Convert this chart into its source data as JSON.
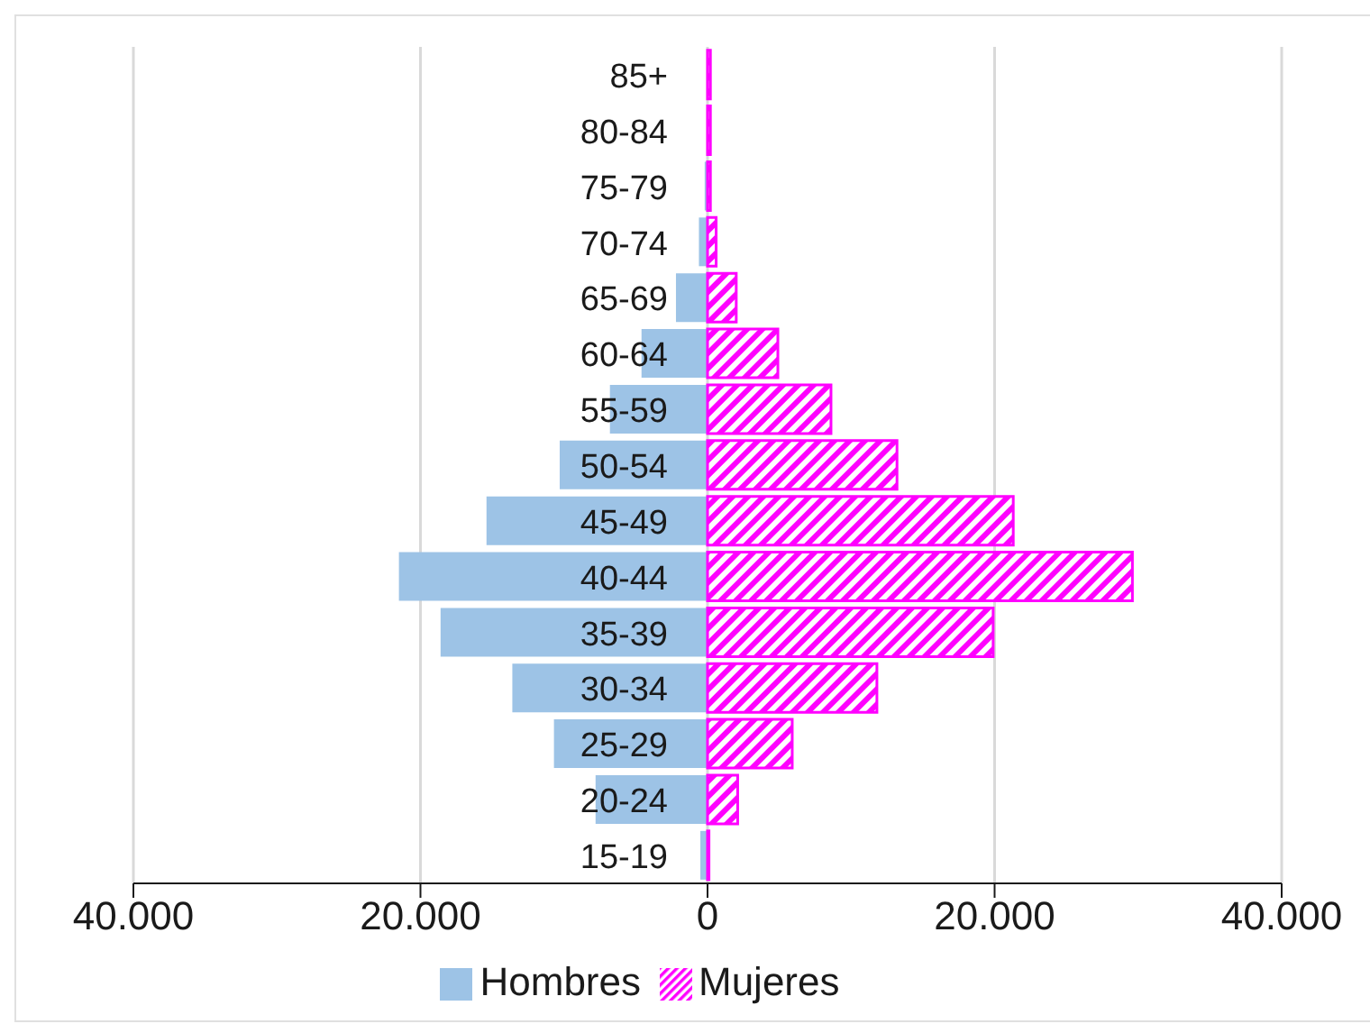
{
  "chart_data": {
    "type": "bar",
    "orientation": "horizontal",
    "categories": [
      "85+",
      "80-84",
      "75-79",
      "70-74",
      "65-69",
      "60-64",
      "55-59",
      "50-54",
      "45-49",
      "40-44",
      "35-39",
      "30-34",
      "25-29",
      "20-24",
      "15-19"
    ],
    "series": [
      {
        "name": "Hombres",
        "color": "#9dc3e6",
        "values": [
          0,
          0,
          -200,
          -600,
          -2200,
          -4600,
          -6800,
          -10300,
          -15400,
          -21500,
          -18600,
          -13600,
          -10700,
          -7800,
          -500
        ]
      },
      {
        "name": "Mujeres",
        "color": "#ff00ff",
        "values": [
          200,
          200,
          200,
          600,
          2000,
          4900,
          8600,
          13200,
          21300,
          29600,
          19900,
          11800,
          5900,
          2100,
          100
        ]
      }
    ],
    "xlim": [
      -40000,
      40000
    ],
    "xticks": [
      {
        "value": -40000,
        "label": "40.000"
      },
      {
        "value": -20000,
        "label": "20.000"
      },
      0,
      {
        "value": 20000,
        "label": "20.000"
      },
      {
        "value": 40000,
        "label": "40.000"
      }
    ],
    "grid": "x",
    "legend": "bottom",
    "stacked": true
  }
}
